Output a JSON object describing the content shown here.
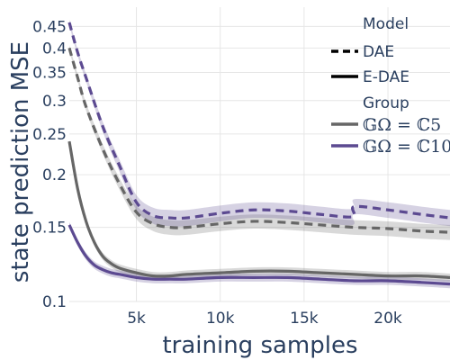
{
  "chart_data": {
    "type": "line",
    "xlabel": "training samples",
    "ylabel": "state prediction MSE",
    "xlim": [
      1000,
      23700
    ],
    "ylim": [
      0.1,
      0.5
    ],
    "yscale": "log",
    "grid": true,
    "legend_placement": "top-right",
    "x_ticks": [
      {
        "value": 5000,
        "label": "5k"
      },
      {
        "value": 10000,
        "label": "10k"
      },
      {
        "value": 15000,
        "label": "15k"
      },
      {
        "value": 20000,
        "label": "20k"
      }
    ],
    "y_ticks": [
      {
        "value": 0.1,
        "label": "0.1"
      },
      {
        "value": 0.15,
        "label": "0.15"
      },
      {
        "value": 0.2,
        "label": "0.2"
      },
      {
        "value": 0.25,
        "label": "0.25"
      },
      {
        "value": 0.3,
        "label": "0.3"
      },
      {
        "value": 0.35,
        "label": "0.35"
      },
      {
        "value": 0.4,
        "label": "0.4"
      },
      {
        "value": 0.45,
        "label": "0.45"
      }
    ],
    "legend": {
      "model_title": "Model",
      "model_items": [
        {
          "label": "DAE",
          "dash": "dashed"
        },
        {
          "label": "E-DAE",
          "dash": "solid"
        }
      ],
      "group_title": "Group",
      "group_items": [
        {
          "label": "𝔾Ω = ℂ5",
          "color": "#666666"
        },
        {
          "label": "𝔾Ω = ℂ10",
          "color": "#5c4a91"
        }
      ]
    },
    "series": [
      {
        "model": "DAE",
        "group": "C5",
        "color": "#666666",
        "dash": "dashed",
        "x": [
          1000,
          1500,
          2000,
          3000,
          4000,
          5000,
          6000,
          7000,
          8000,
          10000,
          12000,
          14000,
          16000,
          18000,
          20000,
          22000,
          23700
        ],
        "y": [
          0.4,
          0.34,
          0.29,
          0.23,
          0.19,
          0.163,
          0.153,
          0.15,
          0.15,
          0.153,
          0.155,
          0.154,
          0.152,
          0.15,
          0.149,
          0.147,
          0.146
        ],
        "band": 0.006
      },
      {
        "model": "DAE",
        "group": "C10",
        "color": "#5c4a91",
        "dash": "dashed",
        "x": [
          1000,
          1500,
          2000,
          3000,
          4000,
          5000,
          6000,
          7000,
          8000,
          10000,
          12000,
          14000,
          16000,
          17900,
          18000,
          20000,
          22000,
          23700
        ],
        "y": [
          0.46,
          0.39,
          0.34,
          0.26,
          0.21,
          0.172,
          0.16,
          0.158,
          0.158,
          0.162,
          0.165,
          0.164,
          0.161,
          0.159,
          0.168,
          0.165,
          0.161,
          0.158
        ],
        "band": 0.007
      },
      {
        "model": "E-DAE",
        "group": "C5",
        "color": "#666666",
        "dash": "solid",
        "x": [
          1000,
          1500,
          2000,
          2500,
          3000,
          3500,
          4000,
          5000,
          6000,
          7000,
          8000,
          10000,
          12000,
          14000,
          16000,
          18000,
          20000,
          22000,
          23700
        ],
        "y": [
          0.24,
          0.185,
          0.155,
          0.138,
          0.128,
          0.123,
          0.12,
          0.117,
          0.115,
          0.115,
          0.116,
          0.117,
          0.118,
          0.118,
          0.117,
          0.116,
          0.115,
          0.115,
          0.114
        ],
        "band": 0.0025
      },
      {
        "model": "E-DAE",
        "group": "C10",
        "color": "#5c4a91",
        "dash": "solid",
        "x": [
          1000,
          1500,
          2000,
          2500,
          3000,
          3500,
          4000,
          5000,
          6000,
          7000,
          8000,
          10000,
          12000,
          14000,
          16000,
          18000,
          20000,
          22000,
          23700
        ],
        "y": [
          0.152,
          0.138,
          0.128,
          0.122,
          0.119,
          0.117,
          0.116,
          0.114,
          0.113,
          0.113,
          0.113,
          0.114,
          0.114,
          0.114,
          0.113,
          0.112,
          0.112,
          0.111,
          0.11
        ],
        "band": 0.0025
      }
    ]
  }
}
